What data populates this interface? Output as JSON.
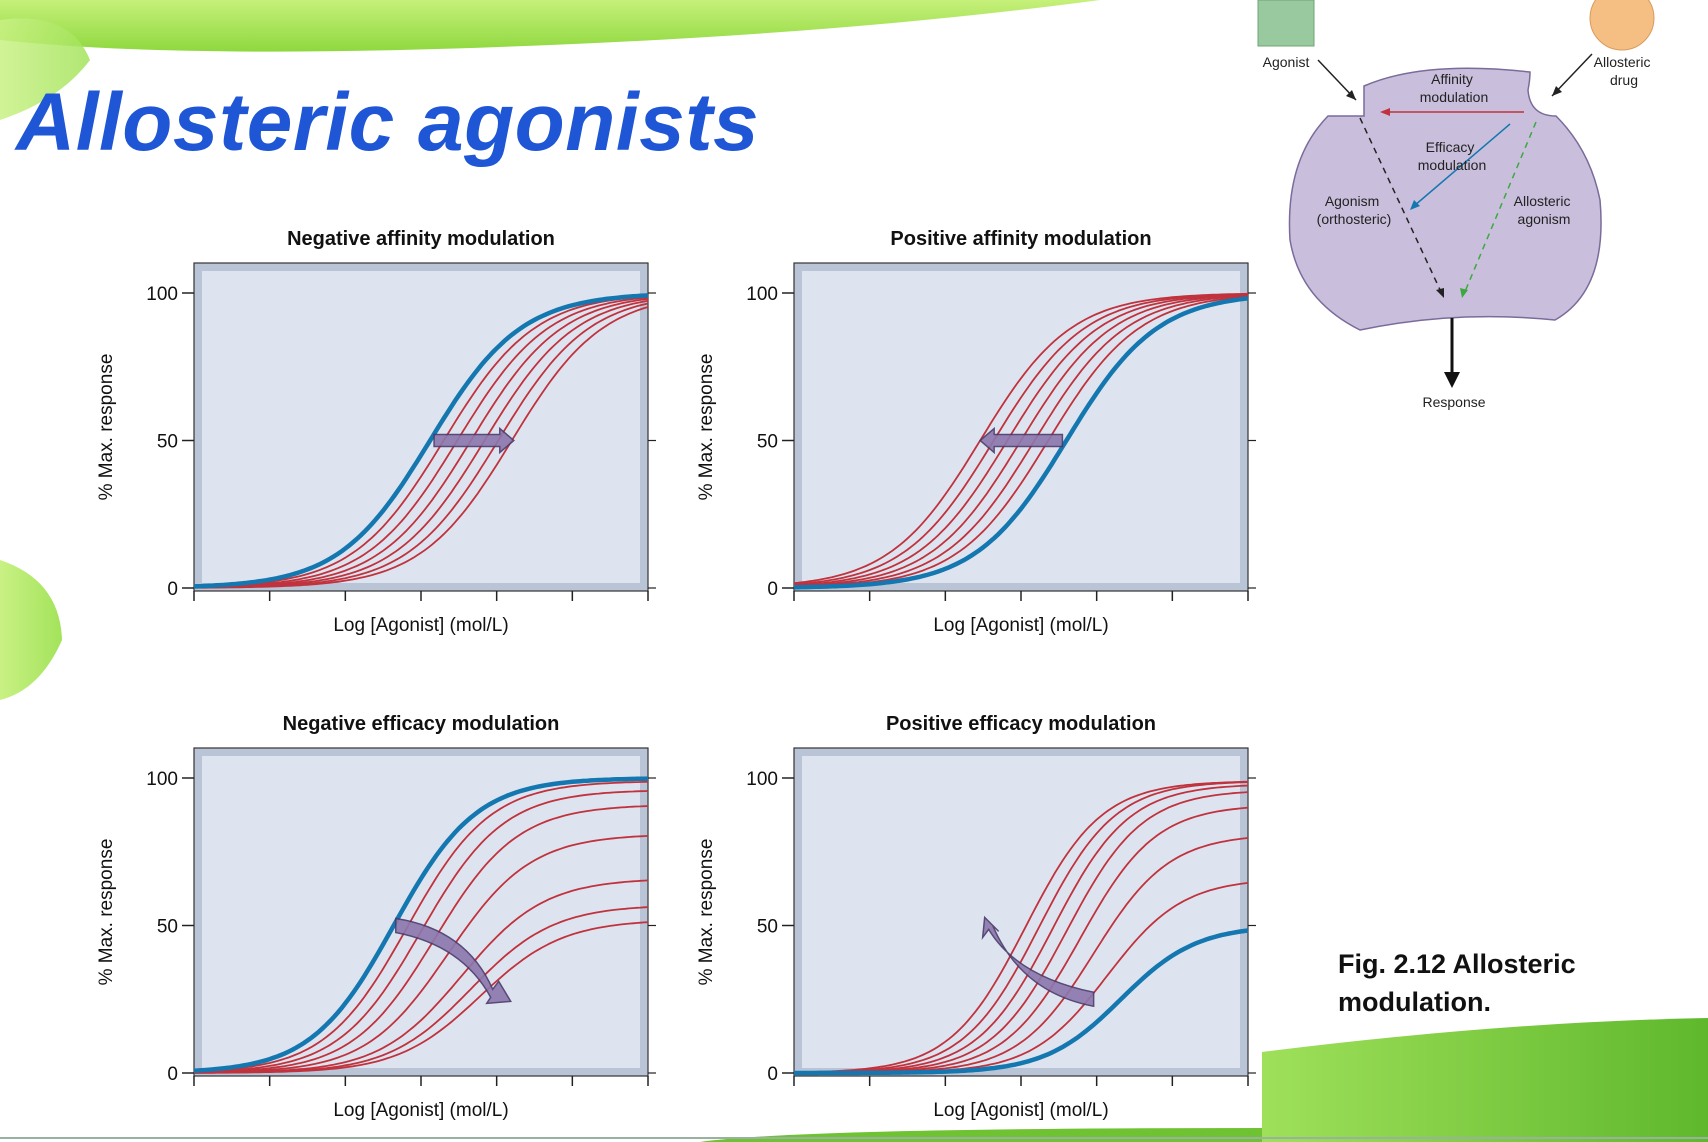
{
  "slide": {
    "title": "Allosteric agonists",
    "caption": "Fig. 2.12 Allosteric modulation."
  },
  "colors": {
    "title": "#1f56d6",
    "reference_curve": "#1477b0",
    "modulated_curves": "#c0323d",
    "plot_bg": "#dde4ef",
    "plot_frame": "#b9c4d6",
    "arrow_fill": "#8d77ad",
    "diagram_receptor": "#c9bfdc"
  },
  "diagram": {
    "agonist_label": "Agonist",
    "allosteric_label": "Allosteric drug",
    "affinity_label": "Affinity modulation",
    "efficacy_label": "Efficacy modulation",
    "agonism_label": "Agonism (orthosteric)",
    "allosteric_agonism_label": "Allosteric agonism",
    "response_label": "Response"
  },
  "chart_data": [
    {
      "type": "line",
      "title": "Negative affinity modulation",
      "xlabel": "Log [Agonist] (mol/L)",
      "ylabel": "% Max. response",
      "yticks": [
        0,
        50,
        100
      ],
      "ylim": [
        0,
        100
      ],
      "x_tick_count": 7,
      "grid": false,
      "reference": {
        "ec50": 0.52,
        "emax": 100,
        "slope": 10
      },
      "series": [
        {
          "ec50": 0.55,
          "emax": 100
        },
        {
          "ec50": 0.58,
          "emax": 100
        },
        {
          "ec50": 0.61,
          "emax": 100
        },
        {
          "ec50": 0.64,
          "emax": 100
        },
        {
          "ec50": 0.67,
          "emax": 100
        },
        {
          "ec50": 0.7,
          "emax": 100
        }
      ],
      "arrow": "right"
    },
    {
      "type": "line",
      "title": "Positive affinity modulation",
      "xlabel": "Log [Agonist] (mol/L)",
      "ylabel": "% Max. response",
      "yticks": [
        0,
        50,
        100
      ],
      "ylim": [
        0,
        100
      ],
      "x_tick_count": 7,
      "grid": false,
      "reference": {
        "ec50": 0.6,
        "emax": 100,
        "slope": 10
      },
      "series": [
        {
          "ec50": 0.41,
          "emax": 100
        },
        {
          "ec50": 0.44,
          "emax": 100
        },
        {
          "ec50": 0.47,
          "emax": 100
        },
        {
          "ec50": 0.5,
          "emax": 100
        },
        {
          "ec50": 0.53,
          "emax": 100
        },
        {
          "ec50": 0.56,
          "emax": 100
        }
      ],
      "arrow": "left"
    },
    {
      "type": "line",
      "title": "Negative efficacy modulation",
      "xlabel": "Log [Agonist] (mol/L)",
      "ylabel": "% Max. response",
      "yticks": [
        0,
        50,
        100
      ],
      "ylim": [
        0,
        100
      ],
      "x_tick_count": 7,
      "grid": false,
      "reference": {
        "ec50": 0.44,
        "emax": 100,
        "slope": 11
      },
      "series": [
        {
          "ec50": 0.47,
          "emax": 99
        },
        {
          "ec50": 0.5,
          "emax": 96
        },
        {
          "ec50": 0.53,
          "emax": 91
        },
        {
          "ec50": 0.56,
          "emax": 81
        },
        {
          "ec50": 0.59,
          "emax": 66
        },
        {
          "ec50": 0.61,
          "emax": 57
        },
        {
          "ec50": 0.63,
          "emax": 52
        }
      ],
      "arrow": "curved-down-right"
    },
    {
      "type": "line",
      "title": "Positive efficacy modulation",
      "xlabel": "Log [Agonist] (mol/L)",
      "ylabel": "% Max. response",
      "yticks": [
        0,
        50,
        100
      ],
      "ylim": [
        0,
        100
      ],
      "x_tick_count": 7,
      "grid": false,
      "reference": {
        "ec50": 0.72,
        "emax": 50,
        "slope": 12
      },
      "series": [
        {
          "ec50": 0.69,
          "emax": 66
        },
        {
          "ec50": 0.66,
          "emax": 81
        },
        {
          "ec50": 0.63,
          "emax": 91
        },
        {
          "ec50": 0.6,
          "emax": 96
        },
        {
          "ec50": 0.57,
          "emax": 98
        },
        {
          "ec50": 0.54,
          "emax": 99
        },
        {
          "ec50": 0.51,
          "emax": 99
        }
      ],
      "arrow": "curved-up-left"
    }
  ]
}
